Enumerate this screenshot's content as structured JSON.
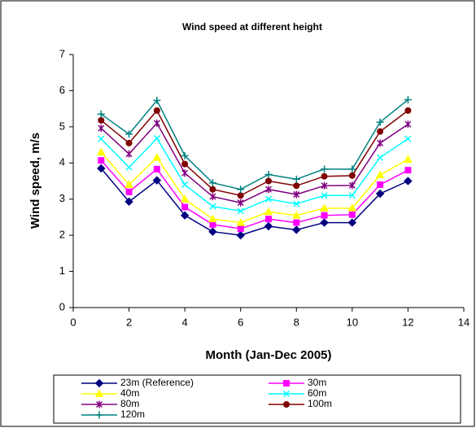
{
  "chart_data": {
    "type": "line",
    "title": "Wind speed at different height",
    "xlabel": "Month (Jan-Dec 2005)",
    "ylabel": "Wind speed, m/s",
    "x": [
      1,
      2,
      3,
      4,
      5,
      6,
      7,
      8,
      9,
      10,
      11,
      12
    ],
    "xlim": [
      0,
      14
    ],
    "xticks": [
      0,
      2,
      4,
      6,
      8,
      10,
      12,
      14
    ],
    "ylim": [
      0,
      7
    ],
    "yticks": [
      0,
      1,
      2,
      3,
      4,
      5,
      6,
      7
    ],
    "series": [
      {
        "name": "23m (Reference)",
        "color": "#000080",
        "marker": "diamond",
        "values": [
          3.85,
          2.93,
          3.52,
          2.55,
          2.1,
          2.0,
          2.25,
          2.15,
          2.35,
          2.35,
          3.15,
          3.5
        ]
      },
      {
        "name": "30m",
        "color": "#FF00FF",
        "marker": "square",
        "values": [
          4.07,
          3.2,
          3.83,
          2.78,
          2.3,
          2.18,
          2.45,
          2.35,
          2.55,
          2.57,
          3.4,
          3.8
        ]
      },
      {
        "name": "40m",
        "color": "#FFFF00",
        "marker": "triangle",
        "values": [
          4.3,
          3.4,
          4.15,
          3.0,
          2.45,
          2.35,
          2.65,
          2.55,
          2.75,
          2.75,
          3.67,
          4.1
        ]
      },
      {
        "name": "60m",
        "color": "#00FFFF",
        "marker": "x",
        "values": [
          4.67,
          3.88,
          4.68,
          3.4,
          2.8,
          2.67,
          3.0,
          2.87,
          3.1,
          3.1,
          4.15,
          4.67
        ]
      },
      {
        "name": "80m",
        "color": "#800080",
        "marker": "star",
        "values": [
          4.96,
          4.25,
          5.1,
          3.72,
          3.07,
          2.9,
          3.27,
          3.13,
          3.37,
          3.38,
          4.55,
          5.07
        ]
      },
      {
        "name": "100m",
        "color": "#800000",
        "marker": "circle",
        "values": [
          5.18,
          4.55,
          5.45,
          3.97,
          3.27,
          3.1,
          3.5,
          3.37,
          3.63,
          3.65,
          4.87,
          5.45
        ]
      },
      {
        "name": "120m",
        "color": "#008080",
        "marker": "plus",
        "values": [
          5.35,
          4.8,
          5.73,
          4.2,
          3.45,
          3.27,
          3.68,
          3.55,
          3.83,
          3.83,
          5.13,
          5.75
        ]
      }
    ]
  }
}
